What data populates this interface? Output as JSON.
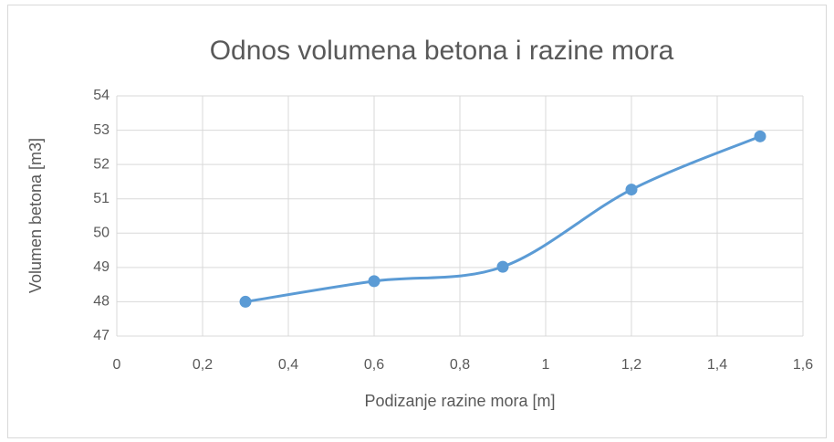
{
  "chart_data": {
    "type": "line",
    "smooth": true,
    "markers": true,
    "title": "Odnos volumena betona i razine mora",
    "xlabel": "Podizanje razine mora [m]",
    "ylabel": "Volumen betona [m3]",
    "x": [
      0.3,
      0.6,
      0.9,
      1.2,
      1.5
    ],
    "series": [
      {
        "color": "#5b9bd5",
        "values": [
          48.0,
          48.6,
          49.02,
          51.27,
          52.82
        ]
      }
    ],
    "xlim": [
      0,
      1.6
    ],
    "xticks": [
      0,
      {
        "value": 0.2,
        "label": "0,2"
      },
      {
        "value": 0.4,
        "label": "0,4"
      },
      {
        "value": 0.6,
        "label": "0,6"
      },
      {
        "value": 0.8,
        "label": "0,8"
      },
      1,
      {
        "value": 1.2,
        "label": "1,2"
      },
      {
        "value": 1.4,
        "label": "1,4"
      },
      {
        "value": 1.6,
        "label": "1,6"
      }
    ],
    "ylim": [
      47,
      54
    ],
    "yticks": [
      47,
      48,
      49,
      50,
      51,
      52,
      53,
      54
    ],
    "grid": true
  }
}
